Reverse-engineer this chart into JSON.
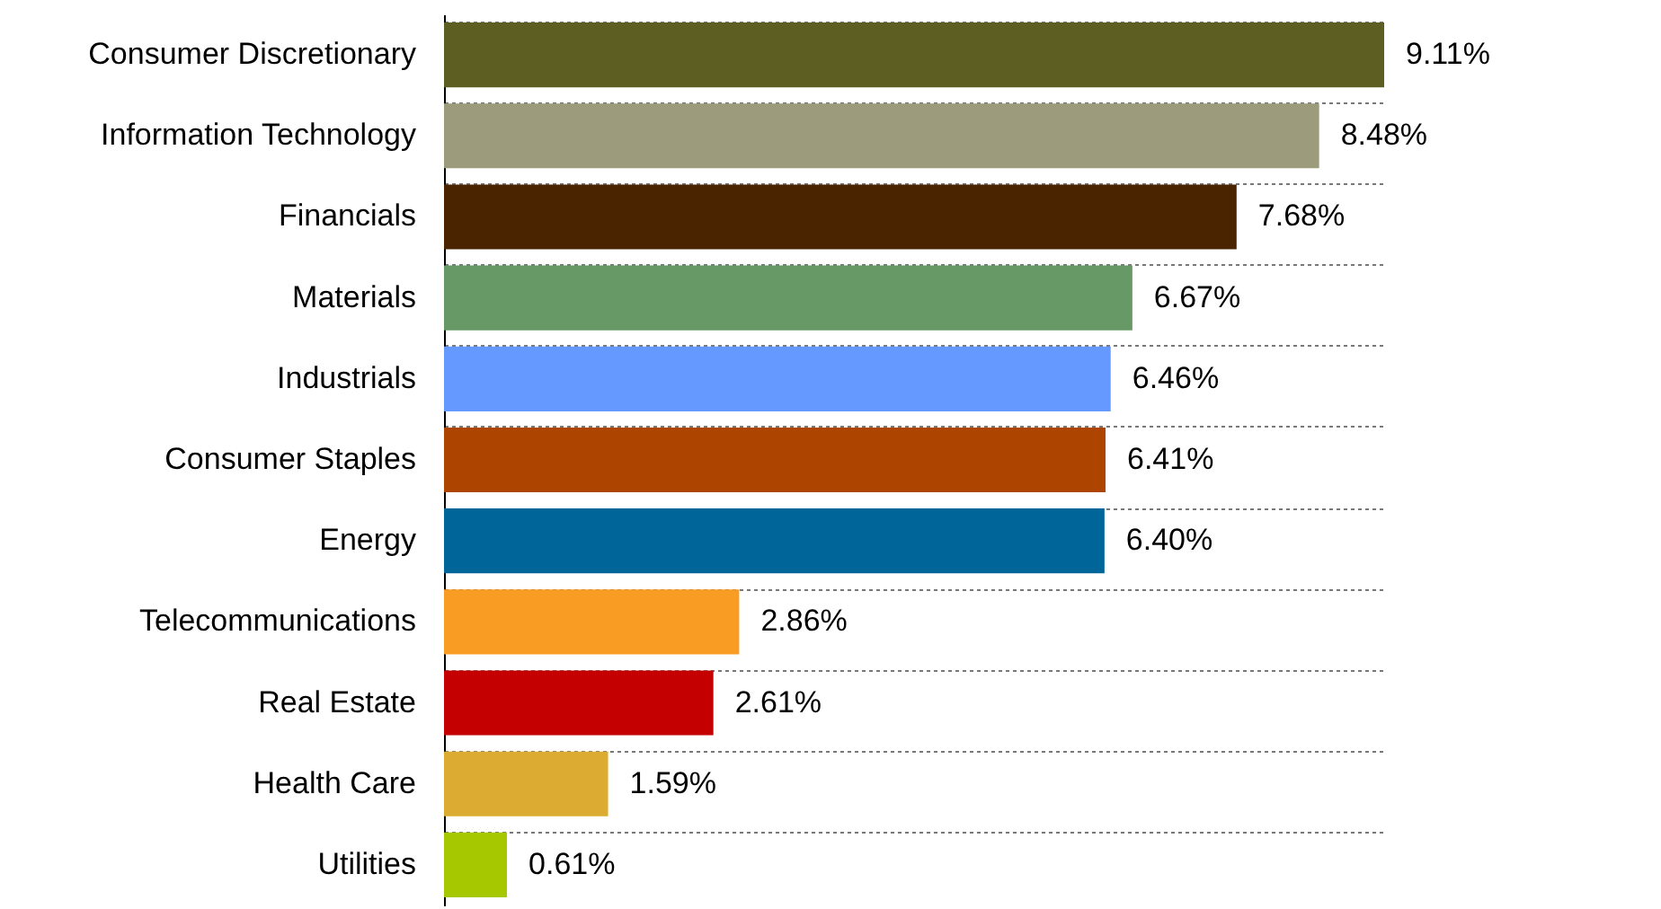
{
  "chart_data": {
    "type": "bar",
    "orientation": "horizontal",
    "tick_labels": "y",
    "grid": "y",
    "categories": [
      "Consumer Discretionary",
      "Information Technology",
      "Financials",
      "Materials",
      "Industrials",
      "Consumer Staples",
      "Energy",
      "Telecommunications",
      "Real Estate",
      "Health Care",
      "Utilities"
    ],
    "values": [
      9.11,
      8.48,
      7.68,
      6.67,
      6.46,
      6.41,
      6.4,
      2.86,
      2.61,
      1.59,
      0.61
    ],
    "value_labels": [
      "9.11%",
      "8.48%",
      "7.68%",
      "6.67%",
      "6.46%",
      "6.41%",
      "6.40%",
      "2.86%",
      "2.61%",
      "1.59%",
      "0.61%"
    ],
    "colors": [
      "#5c5e22",
      "#9c9c7c",
      "#4a2400",
      "#669966",
      "#6699ff",
      "#ad4500",
      "#006699",
      "#f99c23",
      "#c40000",
      "#dbac31",
      "#a5c800"
    ]
  }
}
